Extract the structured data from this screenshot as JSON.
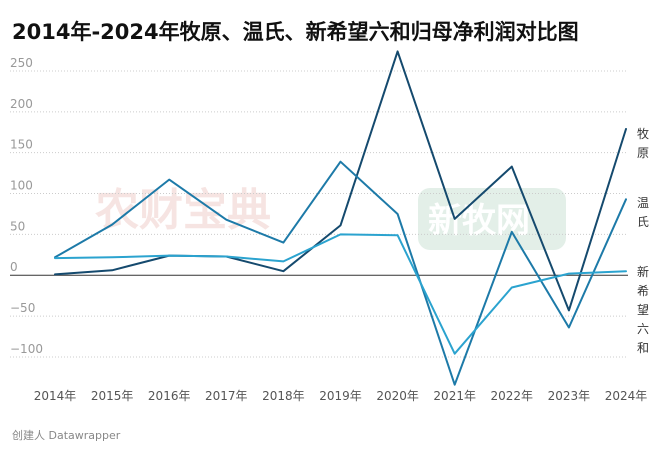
{
  "title": "2014年-2024年牧原、温氏、新希望六和归母净利润对比图",
  "footer": "创建人 Datawrapper",
  "chart_data": {
    "type": "line",
    "title": "2014年-2024年牧原、温氏、新希望六和归母净利润对比图",
    "categories": [
      "2014年",
      "2015年",
      "2016年",
      "2017年",
      "2018年",
      "2019年",
      "2020年",
      "2021年",
      "2022年",
      "2023年",
      "2024年"
    ],
    "y_ticks": [
      250,
      200,
      150,
      100,
      50,
      0,
      -50,
      -100
    ],
    "y_tick_labels": [
      "250",
      "200",
      "150",
      "100",
      "50",
      "0",
      "−50",
      "−100"
    ],
    "ylim": [
      -138,
      272
    ],
    "grid": "dotted horizontal",
    "legend": "direct labels at right end",
    "series": [
      {
        "name": "牧原",
        "label_chars": [
          "牧",
          "原"
        ],
        "color": "#154a6e",
        "values": [
          1,
          6,
          24,
          23,
          5,
          61,
          274,
          69,
          133,
          -43,
          179
        ]
      },
      {
        "name": "温氏",
        "label_chars": [
          "温",
          "氏"
        ],
        "color": "#1d7aa8",
        "values": [
          22,
          62,
          117,
          68,
          40,
          139,
          75,
          -134,
          53,
          -64,
          93
        ]
      },
      {
        "name": "新希望六和",
        "label_chars": [
          "新",
          "希",
          "望",
          "六",
          "和"
        ],
        "color": "#2ba3cf",
        "values": [
          21,
          22,
          24,
          23,
          17,
          50,
          49,
          -96,
          -15,
          2,
          5
        ]
      }
    ]
  }
}
